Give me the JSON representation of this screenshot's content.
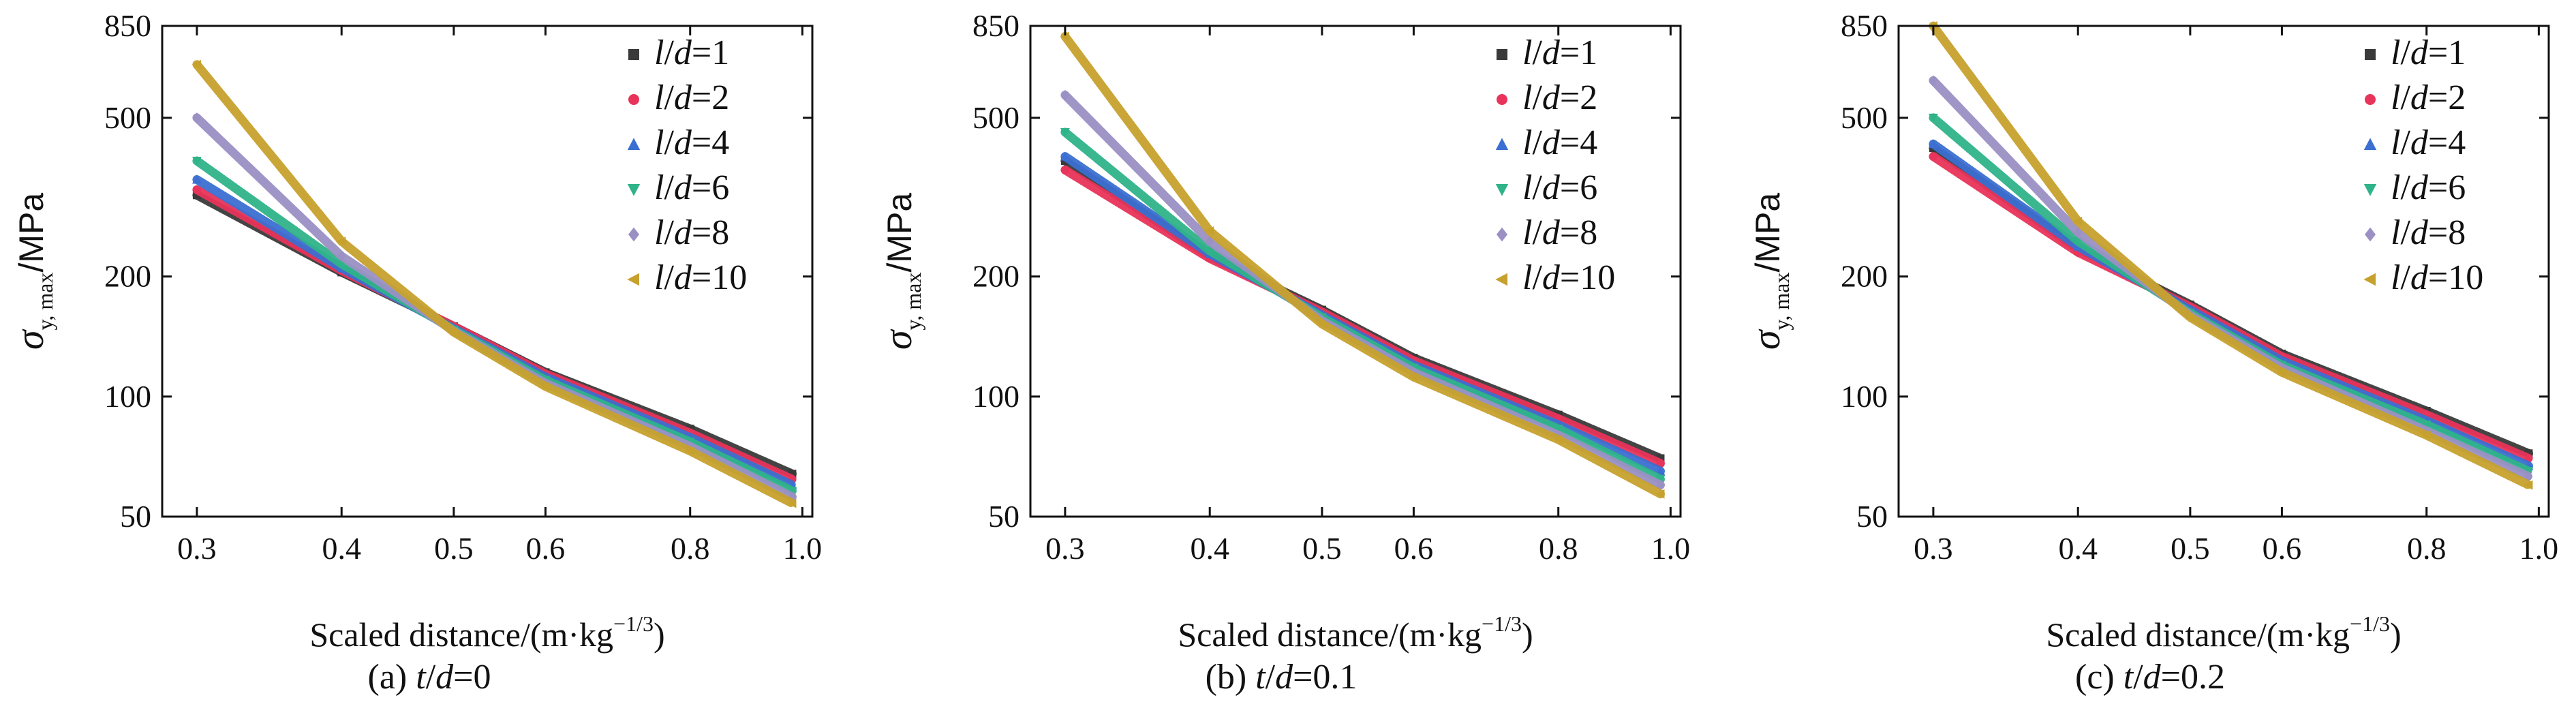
{
  "figure": {
    "panels": [
      {
        "caption_prefix": "(a) ",
        "caption_var": "t",
        "caption_sep": "/",
        "caption_var2": "d",
        "caption_value": "=0"
      },
      {
        "caption_prefix": "(b) ",
        "caption_var": "t",
        "caption_sep": "/",
        "caption_var2": "d",
        "caption_value": "=0.1"
      },
      {
        "caption_prefix": "(c) ",
        "caption_var": "t",
        "caption_sep": "/",
        "caption_var2": "d",
        "caption_value": "=0.2"
      }
    ],
    "xlabel_main": "Scaled distance/(m·kg",
    "xlabel_sup": "−1/3",
    "xlabel_close": ")",
    "ylabel_sym": "σ",
    "ylabel_sub": "y, max",
    "ylabel_unit": "/MPa",
    "legend_var": "l",
    "legend_sep": "/",
    "legend_var2": "d"
  },
  "colors": {
    "l/d=1": "#3a3a3a",
    "l/d=2": "#e8345a",
    "l/d=4": "#3b6fd1",
    "l/d=6": "#2fb388",
    "l/d=8": "#9a90c4",
    "l/d=10": "#c6a12c"
  },
  "chart_data": [
    {
      "type": "line",
      "x_scale": "log",
      "y_scale": "log",
      "xlim": [
        0.28,
        1.02
      ],
      "ylim": [
        50,
        850
      ],
      "xticks": [
        0.3,
        0.4,
        0.5,
        0.6,
        0.8,
        1.0
      ],
      "xtick_labels": [
        "0.3",
        "0.4",
        "0.5",
        "0.6",
        "0.8",
        "1.0"
      ],
      "yticks": [
        50,
        100,
        200,
        500,
        850
      ],
      "ytick_labels": [
        "50",
        "100",
        "200",
        "500",
        "850"
      ],
      "legend_position": "top-right",
      "x": [
        0.3,
        0.4,
        0.5,
        0.6,
        0.8,
        0.98
      ],
      "series": [
        {
          "name": "l/d=1",
          "marker": "square",
          "values": [
            320,
            205,
            150,
            115,
            83,
            64
          ]
        },
        {
          "name": "l/d=2",
          "marker": "circle",
          "values": [
            330,
            207,
            150,
            114,
            81,
            62
          ]
        },
        {
          "name": "l/d=4",
          "marker": "triangle-up",
          "values": [
            350,
            210,
            148,
            112,
            79,
            60
          ]
        },
        {
          "name": "l/d=6",
          "marker": "triangle-down",
          "values": [
            390,
            215,
            147,
            110,
            77,
            58
          ]
        },
        {
          "name": "l/d=8",
          "marker": "diamond",
          "values": [
            500,
            225,
            146,
            108,
            75,
            56
          ]
        },
        {
          "name": "l/d=10",
          "marker": "triangle-left",
          "values": [
            680,
            245,
            145,
            106,
            73,
            54
          ]
        }
      ]
    },
    {
      "type": "line",
      "x_scale": "log",
      "y_scale": "log",
      "xlim": [
        0.28,
        1.02
      ],
      "ylim": [
        50,
        850
      ],
      "xticks": [
        0.3,
        0.4,
        0.5,
        0.6,
        0.8,
        1.0
      ],
      "xtick_labels": [
        "0.3",
        "0.4",
        "0.5",
        "0.6",
        "0.8",
        "1.0"
      ],
      "yticks": [
        50,
        100,
        200,
        500,
        850
      ],
      "ytick_labels": [
        "50",
        "100",
        "200",
        "500",
        "850"
      ],
      "legend_position": "top-right",
      "x": [
        0.3,
        0.4,
        0.5,
        0.6,
        0.8,
        0.98
      ],
      "series": [
        {
          "name": "l/d=1",
          "marker": "square",
          "values": [
            390,
            225,
            165,
            125,
            90,
            70
          ]
        },
        {
          "name": "l/d=2",
          "marker": "circle",
          "values": [
            370,
            222,
            163,
            123,
            88,
            68
          ]
        },
        {
          "name": "l/d=4",
          "marker": "triangle-up",
          "values": [
            400,
            228,
            160,
            120,
            85,
            65
          ]
        },
        {
          "name": "l/d=6",
          "marker": "triangle-down",
          "values": [
            460,
            232,
            158,
            118,
            83,
            62
          ]
        },
        {
          "name": "l/d=8",
          "marker": "diamond",
          "values": [
            570,
            245,
            155,
            115,
            80,
            60
          ]
        },
        {
          "name": "l/d=10",
          "marker": "triangle-left",
          "values": [
            800,
            260,
            152,
            112,
            78,
            57
          ]
        }
      ]
    },
    {
      "type": "line",
      "x_scale": "log",
      "y_scale": "log",
      "xlim": [
        0.28,
        1.02
      ],
      "ylim": [
        50,
        850
      ],
      "xticks": [
        0.3,
        0.4,
        0.5,
        0.6,
        0.8,
        1.0
      ],
      "xtick_labels": [
        "0.3",
        "0.4",
        "0.5",
        "0.6",
        "0.8",
        "1.0"
      ],
      "yticks": [
        50,
        100,
        200,
        500,
        850
      ],
      "ytick_labels": [
        "50",
        "100",
        "200",
        "500",
        "850"
      ],
      "legend_position": "top-right",
      "x": [
        0.3,
        0.4,
        0.5,
        0.6,
        0.8,
        0.98
      ],
      "series": [
        {
          "name": "l/d=1",
          "marker": "square",
          "values": [
            420,
            235,
            170,
            128,
            92,
            72
          ]
        },
        {
          "name": "l/d=2",
          "marker": "circle",
          "values": [
            400,
            230,
            168,
            126,
            90,
            70
          ]
        },
        {
          "name": "l/d=4",
          "marker": "triangle-up",
          "values": [
            430,
            238,
            165,
            123,
            87,
            67
          ]
        },
        {
          "name": "l/d=6",
          "marker": "triangle-down",
          "values": [
            500,
            245,
            162,
            120,
            85,
            65
          ]
        },
        {
          "name": "l/d=8",
          "marker": "diamond",
          "values": [
            620,
            258,
            160,
            118,
            82,
            63
          ]
        },
        {
          "name": "l/d=10",
          "marker": "triangle-left",
          "values": [
            850,
            275,
            158,
            115,
            80,
            60
          ]
        }
      ]
    }
  ]
}
